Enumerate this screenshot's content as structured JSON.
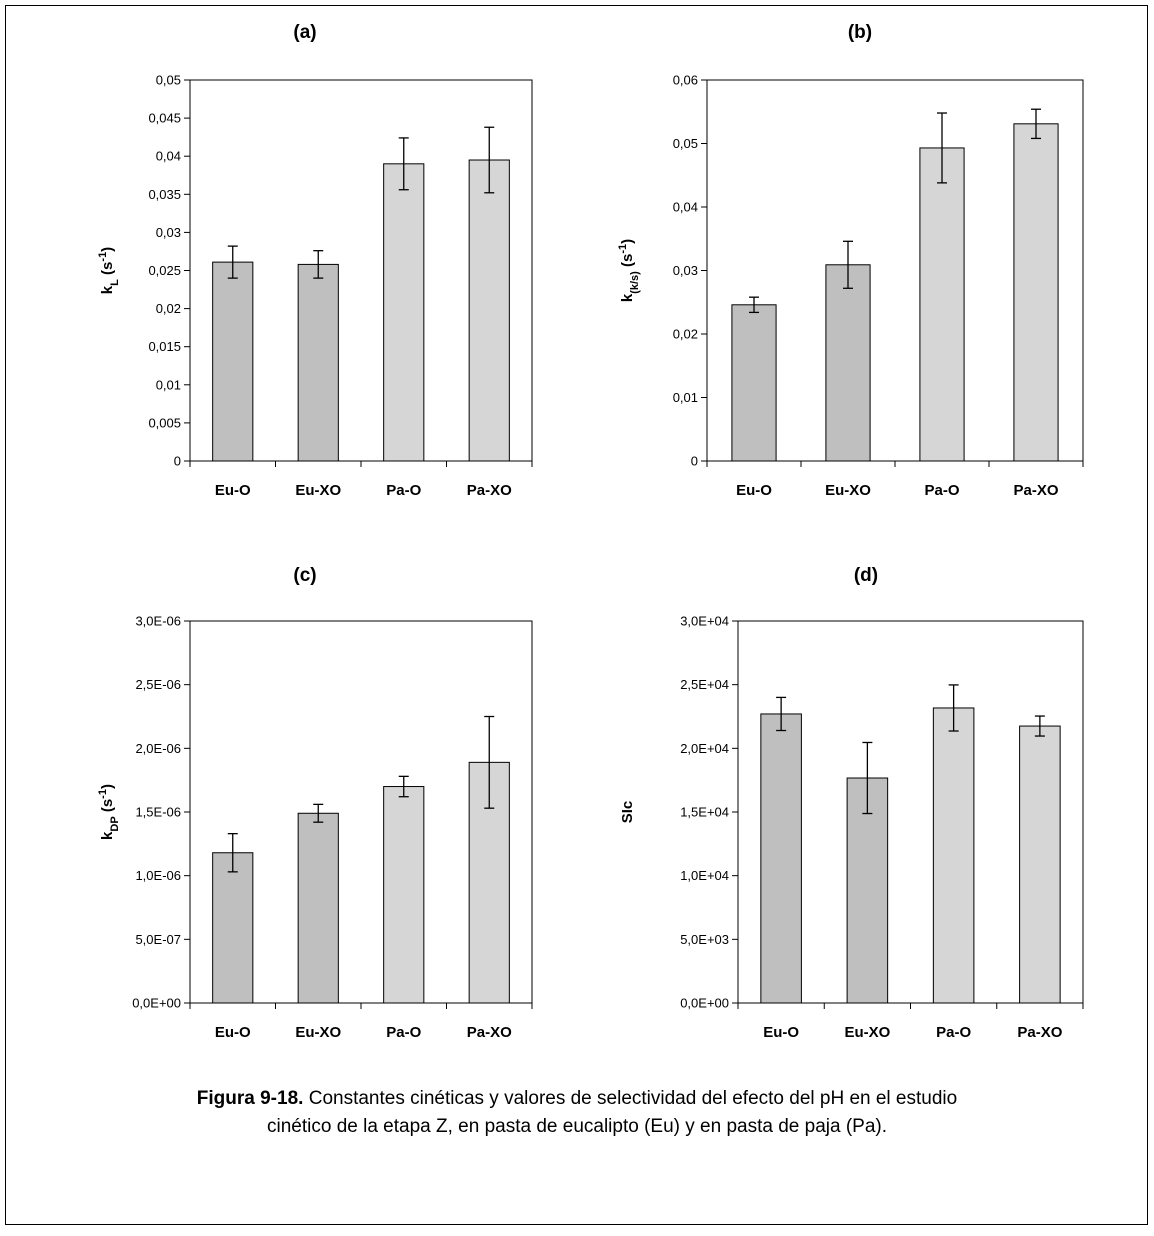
{
  "chart_data": [
    {
      "type": "bar",
      "title": "(a)",
      "ylabel": [
        {
          "text": "k"
        },
        {
          "text": "L",
          "shift": "sub"
        },
        {
          "text": " (s"
        },
        {
          "text": "-1",
          "shift": "super"
        },
        {
          "text": ")"
        }
      ],
      "categories": [
        "Eu-O",
        "Eu-XO",
        "Pa-O",
        "Pa-XO"
      ],
      "values": [
        0.0261,
        0.0258,
        0.039,
        0.0395
      ],
      "errors": [
        0.0021,
        0.0018,
        0.0034,
        0.0043
      ],
      "colors": [
        "#bfbfbf",
        "#bfbfbf",
        "#d6d6d6",
        "#d6d6d6"
      ],
      "ylim": [
        0,
        0.05
      ],
      "yticks": [
        0,
        {
          "value": 0.005,
          "label": "0,005"
        },
        {
          "value": 0.01,
          "label": "0,01"
        },
        {
          "value": 0.015,
          "label": "0,015"
        },
        {
          "value": 0.02,
          "label": "0,02"
        },
        {
          "value": 0.025,
          "label": "0,025"
        },
        {
          "value": 0.03,
          "label": "0,03"
        },
        {
          "value": 0.035,
          "label": "0,035"
        },
        {
          "value": 0.04,
          "label": "0,04"
        },
        {
          "value": 0.045,
          "label": "0,045"
        },
        {
          "value": 0.05,
          "label": "0,05"
        }
      ]
    },
    {
      "type": "bar",
      "title": "(b)",
      "ylabel": [
        {
          "text": "k"
        },
        {
          "text": "(k/s)",
          "shift": "sub"
        },
        {
          "text": " (s"
        },
        {
          "text": "-1",
          "shift": "super"
        },
        {
          "text": ")"
        }
      ],
      "categories": [
        "Eu-O",
        "Eu-XO",
        "Pa-O",
        "Pa-XO"
      ],
      "values": [
        0.0246,
        0.0309,
        0.0493,
        0.0531
      ],
      "errors": [
        0.0012,
        0.0037,
        0.0055,
        0.0023
      ],
      "colors": [
        "#bfbfbf",
        "#bfbfbf",
        "#d6d6d6",
        "#d6d6d6"
      ],
      "ylim": [
        0,
        0.06
      ],
      "yticks": [
        0,
        {
          "value": 0.01,
          "label": "0,01"
        },
        {
          "value": 0.02,
          "label": "0,02"
        },
        {
          "value": 0.03,
          "label": "0,03"
        },
        {
          "value": 0.04,
          "label": "0,04"
        },
        {
          "value": 0.05,
          "label": "0,05"
        },
        {
          "value": 0.06,
          "label": "0,06"
        }
      ]
    },
    {
      "type": "bar",
      "title": "(c)",
      "ylabel": [
        {
          "text": "k"
        },
        {
          "text": "DP",
          "shift": "sub"
        },
        {
          "text": " (s"
        },
        {
          "text": "-1",
          "shift": "super"
        },
        {
          "text": ")"
        }
      ],
      "categories": [
        "Eu-O",
        "Eu-XO",
        "Pa-O",
        "Pa-XO"
      ],
      "values": [
        1.18e-06,
        1.49e-06,
        1.7e-06,
        1.89e-06
      ],
      "errors": [
        1.5e-07,
        7e-08,
        8e-08,
        3.6e-07
      ],
      "colors": [
        "#bfbfbf",
        "#bfbfbf",
        "#d6d6d6",
        "#d6d6d6"
      ],
      "ylim": [
        0,
        3e-06
      ],
      "yticks": [
        {
          "value": 0,
          "label": "0,0E+00"
        },
        {
          "value": 5e-07,
          "label": "5,0E-07"
        },
        {
          "value": 1e-06,
          "label": "1,0E-06"
        },
        {
          "value": 1.5e-06,
          "label": "1,5E-06"
        },
        {
          "value": 2e-06,
          "label": "2,0E-06"
        },
        {
          "value": 2.5e-06,
          "label": "2,5E-06"
        },
        {
          "value": 3e-06,
          "label": "3,0E-06"
        }
      ]
    },
    {
      "type": "bar",
      "title": "(d)",
      "ylabel": [
        {
          "text": "SIc"
        }
      ],
      "categories": [
        "Eu-O",
        "Eu-XO",
        "Pa-O",
        "Pa-XO"
      ],
      "values": [
        22700,
        17670,
        23170,
        21750
      ],
      "errors": [
        1300,
        2790,
        1810,
        785
      ],
      "colors": [
        "#bfbfbf",
        "#bfbfbf",
        "#d6d6d6",
        "#d6d6d6"
      ],
      "ylim": [
        0,
        30000
      ],
      "yticks": [
        {
          "value": 0,
          "label": "0,0E+00"
        },
        {
          "value": 5000,
          "label": "5,0E+03"
        },
        {
          "value": 10000,
          "label": "1,0E+04"
        },
        {
          "value": 15000,
          "label": "1,5E+04"
        },
        {
          "value": 20000,
          "label": "2,0E+04"
        },
        {
          "value": 25000,
          "label": "2,5E+04"
        },
        {
          "value": 30000,
          "label": "3,0E+04"
        }
      ]
    }
  ],
  "caption": {
    "label": "Figura 9-18.",
    "lines": [
      " Constantes cinéticas y valores de selectividad del efecto del pH en el estudio",
      "cinético de la etapa Z, en pasta de eucalipto (Eu) y en pasta de paja (Pa)."
    ]
  }
}
